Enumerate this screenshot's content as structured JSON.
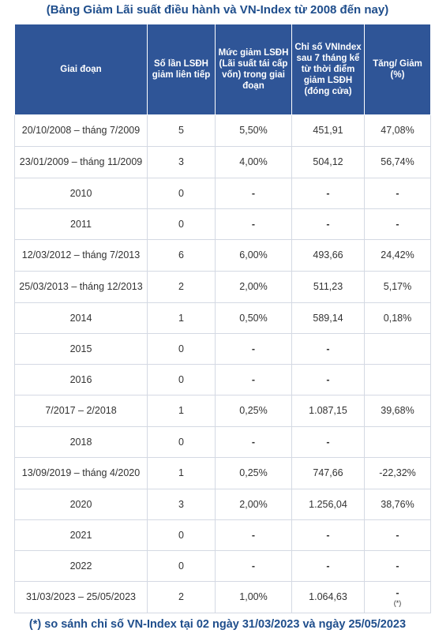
{
  "title": "(Bảng Giảm Lãi suất điều hành và VN-Index từ 2008 đến nay)",
  "headers": [
    "Giai đoạn",
    "Số lần LSĐH giảm liên tiếp",
    "Mức giảm LSĐH (Lãi suất tái cấp vốn) trong giai đoạn",
    "Chỉ số VNIndex sau 7 tháng kể từ thời điểm giảm LSĐH (đóng cửa)",
    "Tăng/ Giảm (%)"
  ],
  "rows": [
    {
      "period": "20/10/2008 – tháng 7/2009",
      "cuts": "5",
      "amount": "5,50%",
      "index": "451,91",
      "change": "47,08%"
    },
    {
      "period": "23/01/2009 – tháng 11/2009",
      "cuts": "3",
      "amount": "4,00%",
      "index": "504,12",
      "change": "56,74%"
    },
    {
      "period": "2010",
      "cuts": "0",
      "amount": "-",
      "index": "-",
      "change": "-"
    },
    {
      "period": "2011",
      "cuts": "0",
      "amount": "-",
      "index": "-",
      "change": "-"
    },
    {
      "period": "12/03/2012 – tháng 7/2013",
      "cuts": "6",
      "amount": "6,00%",
      "index": "493,66",
      "change": "24,42%"
    },
    {
      "period": "25/03/2013 – tháng 12/2013",
      "cuts": "2",
      "amount": "2,00%",
      "index": "511,23",
      "change": "5,17%"
    },
    {
      "period": "2014",
      "cuts": "1",
      "amount": "0,50%",
      "index": "589,14",
      "change": "0,18%"
    },
    {
      "period": "2015",
      "cuts": "0",
      "amount": "-",
      "index": "-",
      "change": ""
    },
    {
      "period": "2016",
      "cuts": "0",
      "amount": "-",
      "index": "-",
      "change": ""
    },
    {
      "period": "7/2017 – 2/2018",
      "cuts": "1",
      "amount": "0,25%",
      "index": "1.087,15",
      "change": "39,68%"
    },
    {
      "period": "2018",
      "cuts": "0",
      "amount": "-",
      "index": "-",
      "change": ""
    },
    {
      "period": "13/09/2019 – tháng 4/2020",
      "cuts": "1",
      "amount": "0,25%",
      "index": "747,66",
      "change": "-22,32%"
    },
    {
      "period": "2020",
      "cuts": "3",
      "amount": "2,00%",
      "index": "1.256,04",
      "change": "38,76%"
    },
    {
      "period": "2021",
      "cuts": "0",
      "amount": "-",
      "index": "-",
      "change": "-"
    },
    {
      "period": "2022",
      "cuts": "0",
      "amount": "-",
      "index": "-",
      "change": "-"
    },
    {
      "period": "31/03/2023 – 25/05/2023",
      "cuts": "2",
      "amount": "1,00%",
      "index": "1.064,63",
      "change": "-",
      "change_note": "(*)"
    }
  ],
  "footnote": "(*) so sánh chỉ số VN-Index tại 02 ngày 31/03/2023 và ngày 25/05/2023"
}
